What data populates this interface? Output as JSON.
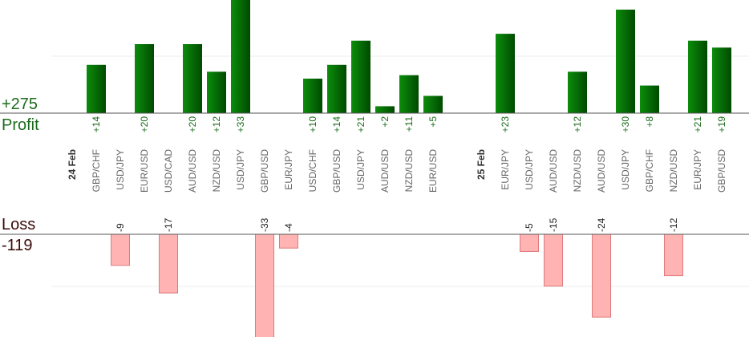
{
  "summary": {
    "profit_total": "+275",
    "profit_label": "Profit",
    "loss_label": "Loss",
    "loss_total": "-119"
  },
  "colors": {
    "profit_bar_light": "#0a8a0a",
    "profit_bar_dark": "#004d00",
    "loss_bar_fill": "#ffb3b3",
    "loss_bar_stroke": "#e07a7a",
    "profit_text": "#1b6b1b",
    "category_text": "#666666",
    "date_text": "#333333"
  },
  "chart_data": {
    "type": "bar",
    "slots": [
      {
        "label": "24 Feb",
        "kind": "date"
      },
      {
        "label": "GBP/CHF",
        "kind": "trade",
        "value": 14
      },
      {
        "label": "USD/JPY",
        "kind": "trade",
        "value": -9
      },
      {
        "label": "EUR/USD",
        "kind": "trade",
        "value": 20
      },
      {
        "label": "USD/CAD",
        "kind": "trade",
        "value": -17
      },
      {
        "label": "AUD/USD",
        "kind": "trade",
        "value": 20
      },
      {
        "label": "NZD/USD",
        "kind": "trade",
        "value": 12
      },
      {
        "label": "USD/JPY",
        "kind": "trade",
        "value": 33
      },
      {
        "label": "GBP/USD",
        "kind": "trade",
        "value": -33
      },
      {
        "label": "EUR/JPY",
        "kind": "trade",
        "value": -4
      },
      {
        "label": "USD/CHF",
        "kind": "trade",
        "value": 10
      },
      {
        "label": "GBP/USD",
        "kind": "trade",
        "value": 14
      },
      {
        "label": "USD/JPY",
        "kind": "trade",
        "value": 21
      },
      {
        "label": "AUD/USD",
        "kind": "trade",
        "value": 2
      },
      {
        "label": "NZD/USD",
        "kind": "trade",
        "value": 11
      },
      {
        "label": "EUR/USD",
        "kind": "trade",
        "value": 5
      },
      {
        "label": "",
        "kind": "gap"
      },
      {
        "label": "25 Feb",
        "kind": "date"
      },
      {
        "label": "EUR/JPY",
        "kind": "trade",
        "value": 23
      },
      {
        "label": "USD/JPY",
        "kind": "trade",
        "value": -5
      },
      {
        "label": "AUD/USD",
        "kind": "trade",
        "value": -15
      },
      {
        "label": "NZD/USD",
        "kind": "trade",
        "value": 12
      },
      {
        "label": "AUD/USD",
        "kind": "trade",
        "value": -24
      },
      {
        "label": "USD/JPY",
        "kind": "trade",
        "value": 30
      },
      {
        "label": "GBP/CHF",
        "kind": "trade",
        "value": 8
      },
      {
        "label": "NZD/USD",
        "kind": "trade",
        "value": -12
      },
      {
        "label": "EUR/JPY",
        "kind": "trade",
        "value": 21
      },
      {
        "label": "GBP/USD",
        "kind": "trade",
        "value": 19
      }
    ],
    "value_labels_signed": true,
    "grid": true
  }
}
